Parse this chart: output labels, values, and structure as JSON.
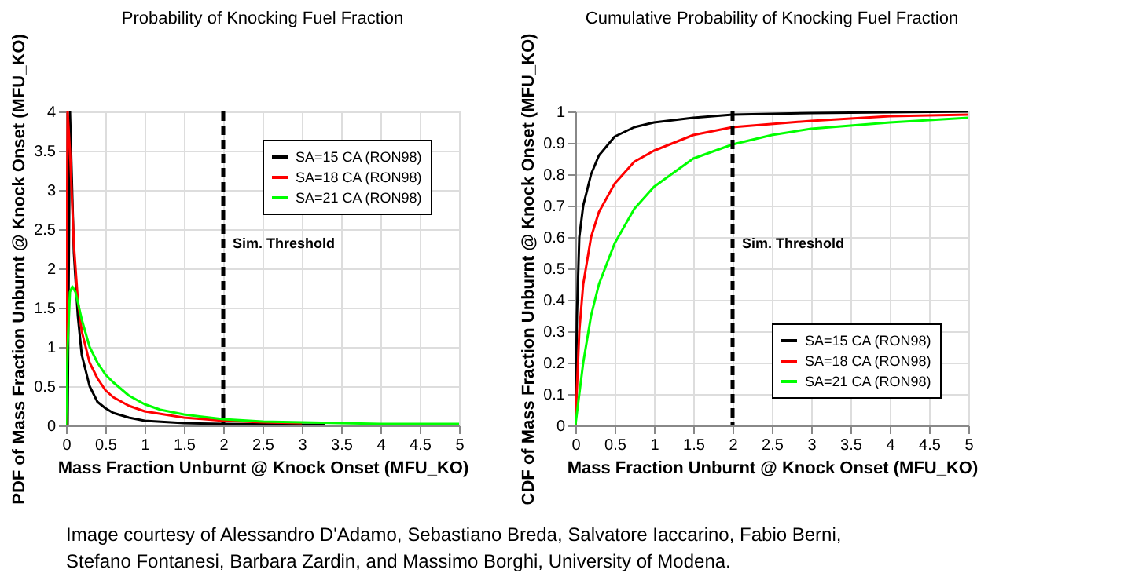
{
  "chart_data": [
    {
      "type": "line",
      "title": "Probability of Knocking Fuel Fraction",
      "xlabel": "Mass Fraction Unburnt @ Knock Onset (MFU_KO)",
      "ylabel": "PDF of Mass Fraction Unburnt @ Knock Onset (MFU_KO)",
      "xlim": [
        0,
        5
      ],
      "ylim": [
        0,
        4
      ],
      "xticks": [
        0,
        0.5,
        1,
        1.5,
        2,
        2.5,
        3,
        3.5,
        4,
        4.5,
        5
      ],
      "yticks": [
        0,
        0.5,
        1,
        1.5,
        2,
        2.5,
        3,
        3.5,
        4
      ],
      "grid": true,
      "legend": "top right",
      "series": [
        {
          "name": "SA=15 CA (RON98)",
          "color": "#000000",
          "x": [
            0.02,
            0.05,
            0.1,
            0.15,
            0.2,
            0.3,
            0.4,
            0.5,
            0.6,
            0.8,
            1,
            1.5,
            2,
            3,
            3.3
          ],
          "values": [
            0,
            4,
            2.2,
            1.4,
            0.9,
            0.5,
            0.3,
            0.22,
            0.16,
            0.1,
            0.06,
            0.03,
            0.02,
            0.01,
            0.01
          ]
        },
        {
          "name": "SA=18 CA (RON98)",
          "color": "#ff0000",
          "x": [
            0,
            0.02,
            0.05,
            0.1,
            0.15,
            0.2,
            0.3,
            0.4,
            0.5,
            0.6,
            0.8,
            1,
            1.5,
            2,
            2.5,
            3
          ],
          "values": [
            0,
            4,
            3.5,
            2.3,
            1.6,
            1.2,
            0.8,
            0.6,
            0.45,
            0.36,
            0.25,
            0.18,
            0.1,
            0.06,
            0.04,
            0.03
          ]
        },
        {
          "name": "SA=21 CA (RON98)",
          "color": "#00ff00",
          "x": [
            0,
            0.02,
            0.05,
            0.08,
            0.12,
            0.2,
            0.3,
            0.4,
            0.5,
            0.6,
            0.8,
            1,
            1.2,
            1.5,
            2,
            2.5,
            3,
            4,
            5
          ],
          "values": [
            0,
            1,
            1.7,
            1.77,
            1.7,
            1.35,
            1.0,
            0.8,
            0.65,
            0.55,
            0.38,
            0.27,
            0.2,
            0.14,
            0.08,
            0.05,
            0.04,
            0.02,
            0.02
          ]
        }
      ],
      "ref_lines": [
        {
          "axis": "x",
          "value": 2,
          "label": "Sim. Threshold",
          "color": "#000000",
          "line_style": "dashed"
        }
      ],
      "annotations": [
        "Image courtesy of Alessandro D'Adamo, Sebastiano Breda, Salvatore Iaccarino, Fabio Berni, Stefano Fontanesi, Barbara Zardin, and Massimo Borghi, University of Modena."
      ]
    },
    {
      "type": "line",
      "title": "Cumulative Probability of Knocking Fuel Fraction",
      "xlabel": "Mass Fraction Unburnt @ Knock Onset (MFU_KO)",
      "ylabel": "CDF of Mass Fraction Unburnt @ Knock Onset (MFU_KO)",
      "xlim": [
        0,
        5
      ],
      "ylim": [
        0,
        1
      ],
      "xticks": [
        0,
        0.5,
        1,
        1.5,
        2,
        2.5,
        3,
        3.5,
        4,
        4.5,
        5
      ],
      "yticks": [
        0,
        0.1,
        0.2,
        0.3,
        0.4,
        0.5,
        0.6,
        0.7,
        0.8,
        0.9,
        1
      ],
      "grid": true,
      "legend": "bottom right",
      "series": [
        {
          "name": "SA=15 CA (RON98)",
          "color": "#000000",
          "x": [
            0,
            0.02,
            0.05,
            0.1,
            0.2,
            0.3,
            0.5,
            0.75,
            1,
            1.5,
            2,
            3,
            5
          ],
          "values": [
            0,
            0.35,
            0.6,
            0.7,
            0.8,
            0.86,
            0.92,
            0.95,
            0.965,
            0.98,
            0.99,
            0.995,
            1
          ]
        },
        {
          "name": "SA=18 CA (RON98)",
          "color": "#ff0000",
          "x": [
            0,
            0.05,
            0.1,
            0.2,
            0.3,
            0.5,
            0.75,
            1,
            1.5,
            2,
            3,
            4,
            5
          ],
          "values": [
            0,
            0.3,
            0.45,
            0.6,
            0.68,
            0.77,
            0.84,
            0.875,
            0.925,
            0.95,
            0.97,
            0.985,
            0.99
          ]
        },
        {
          "name": "SA=21 CA (RON98)",
          "color": "#00ff00",
          "x": [
            0,
            0.05,
            0.1,
            0.2,
            0.3,
            0.5,
            0.75,
            1,
            1.5,
            2,
            2.5,
            3,
            4,
            5
          ],
          "values": [
            0,
            0.1,
            0.2,
            0.35,
            0.45,
            0.58,
            0.69,
            0.76,
            0.85,
            0.895,
            0.925,
            0.945,
            0.965,
            0.98
          ]
        }
      ],
      "ref_lines": [
        {
          "axis": "x",
          "value": 2,
          "label": "Sim. Threshold",
          "color": "#000000",
          "line_style": "dashed"
        }
      ]
    }
  ]
}
